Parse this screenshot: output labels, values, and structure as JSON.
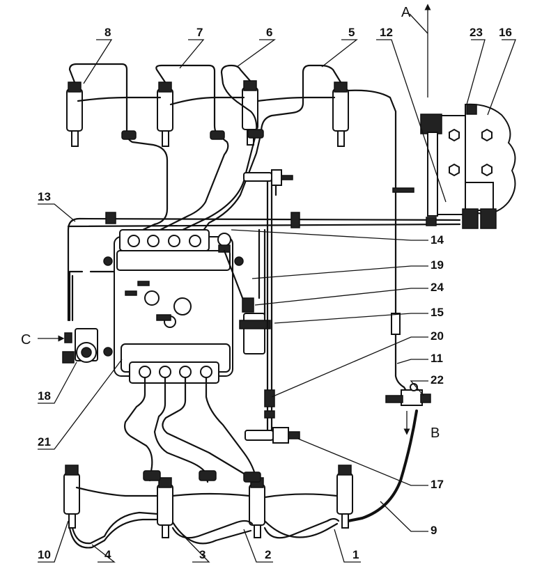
{
  "labels": {
    "l1": "1",
    "l2": "2",
    "l3": "3",
    "l4": "4",
    "l5": "5",
    "l6": "6",
    "l7": "7",
    "l8": "8",
    "l9": "9",
    "l10": "10",
    "l11": "11",
    "l12": "12",
    "l13": "13",
    "l14": "14",
    "l15": "15",
    "l16": "16",
    "l17": "17",
    "l18": "18",
    "l19": "19",
    "l20": "20",
    "l21": "21",
    "l22": "22",
    "l23": "23",
    "l24": "24",
    "A": "A",
    "B": "B",
    "C": "C"
  }
}
